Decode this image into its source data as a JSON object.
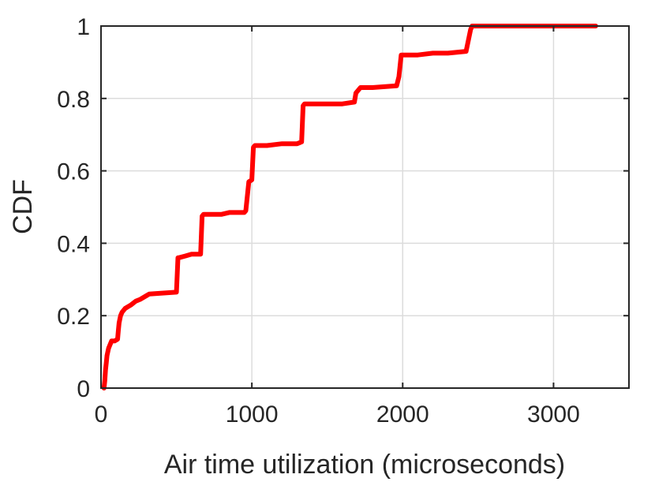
{
  "chart_data": {
    "type": "line",
    "title": "",
    "xlabel": "Air time utilization (microseconds)",
    "ylabel": "CDF",
    "xlim": [
      0,
      3500
    ],
    "ylim": [
      0,
      1
    ],
    "xticks": [
      0,
      1000,
      2000,
      3000
    ],
    "yticks": [
      0,
      0.2,
      0.4,
      0.6,
      0.8,
      1
    ],
    "xtick_labels": [
      "0",
      "1000",
      "2000",
      "3000"
    ],
    "ytick_labels": [
      "0",
      "0.2",
      "0.4",
      "0.6",
      "0.8",
      "1"
    ],
    "grid": true,
    "legend": "none",
    "series": [
      {
        "color": "#ff0000",
        "x": [
          20,
          25,
          30,
          35,
          40,
          50,
          60,
          70,
          90,
          110,
          115,
          120,
          130,
          140,
          160,
          180,
          200,
          230,
          260,
          300,
          320,
          500,
          510,
          515,
          560,
          600,
          660,
          670,
          680,
          800,
          850,
          950,
          960,
          980,
          1000,
          1010,
          1020,
          1100,
          1200,
          1300,
          1330,
          1340,
          1350,
          1500,
          1600,
          1680,
          1690,
          1720,
          1800,
          1960,
          1975,
          1990,
          2100,
          2200,
          2300,
          2420,
          2440,
          2450,
          2460,
          2600,
          3000,
          3280
        ],
        "y": [
          0,
          0.02,
          0.05,
          0.07,
          0.09,
          0.11,
          0.12,
          0.13,
          0.13,
          0.135,
          0.16,
          0.18,
          0.2,
          0.21,
          0.22,
          0.225,
          0.23,
          0.24,
          0.245,
          0.255,
          0.26,
          0.265,
          0.36,
          0.36,
          0.365,
          0.37,
          0.37,
          0.475,
          0.48,
          0.48,
          0.485,
          0.485,
          0.49,
          0.57,
          0.575,
          0.665,
          0.67,
          0.67,
          0.675,
          0.675,
          0.68,
          0.78,
          0.785,
          0.785,
          0.785,
          0.79,
          0.815,
          0.83,
          0.83,
          0.835,
          0.86,
          0.92,
          0.92,
          0.925,
          0.925,
          0.93,
          0.97,
          0.99,
          1.0,
          1.0,
          1.0,
          1.0
        ]
      }
    ]
  }
}
